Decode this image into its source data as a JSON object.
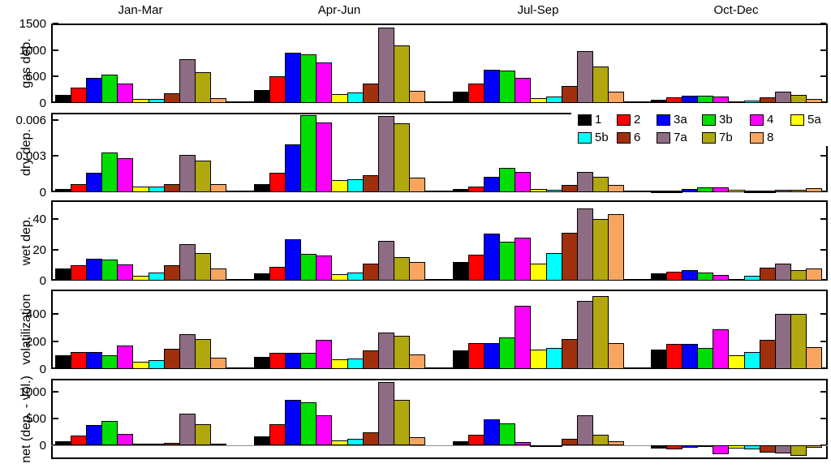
{
  "chart_data": {
    "type": "bar",
    "title": "",
    "groups": [
      "Jan-Mar",
      "Apr-Jun",
      "Jul-Sep",
      "Oct-Dec"
    ],
    "series_labels": [
      "1",
      "2",
      "3a",
      "3b",
      "4",
      "5a",
      "5b",
      "6",
      "7a",
      "7b",
      "8"
    ],
    "series_colors": {
      "1": "#000000",
      "2": "#ff0000",
      "3a": "#0000ff",
      "3b": "#00dd00",
      "4": "#ff00ff",
      "5a": "#ffff00",
      "5b": "#00ffff",
      "6": "#a0300d",
      "7a": "#8e6c84",
      "7b": "#b1a70f",
      "8": "#f8a55f"
    },
    "legend": {
      "position": "top-right of dry dep. panel",
      "rows": [
        [
          "1",
          "2",
          "3a",
          "3b",
          "4",
          "5a"
        ],
        [
          "5b",
          "6",
          "7a",
          "7b",
          "8"
        ]
      ]
    },
    "panels": [
      {
        "ylabel": "gas dep.",
        "ylim": [
          0,
          1500
        ],
        "yticks": [
          0,
          500,
          1000,
          1500
        ],
        "ytick_labels": [
          "0",
          "500",
          "1000",
          "1500"
        ],
        "series": [
          {
            "group": "Jan-Mar",
            "values": [
              160,
              290,
              480,
              540,
              370,
              70,
              80,
              185,
              820,
              585,
              95
            ]
          },
          {
            "group": "Apr-Jun",
            "values": [
              250,
              500,
              950,
              915,
              760,
              165,
              200,
              360,
              1430,
              1090,
              230
            ]
          },
          {
            "group": "Jul-Sep",
            "values": [
              215,
              370,
              625,
              605,
              480,
              85,
              130,
              320,
              985,
              690,
              220
            ]
          },
          {
            "group": "Oct-Dec",
            "values": [
              60,
              105,
              140,
              140,
              115,
              35,
              50,
              100,
              220,
              160,
              70
            ]
          }
        ]
      },
      {
        "ylabel": "dry dep.",
        "ylim": [
          0,
          0.0066
        ],
        "yticks": [
          0,
          0.003,
          0.006
        ],
        "ytick_labels": [
          "0",
          "0.003",
          "0.006"
        ],
        "series": [
          {
            "group": "Jan-Mar",
            "values": [
              0.00025,
              0.0007,
              0.0016,
              0.0033,
              0.0028,
              0.0005,
              0.0005,
              0.0007,
              0.0031,
              0.0026,
              0.0007
            ]
          },
          {
            "group": "Apr-Jun",
            "values": [
              0.0007,
              0.0016,
              0.004,
              0.0064,
              0.0058,
              0.001,
              0.0011,
              0.0014,
              0.0063,
              0.0057,
              0.0012
            ]
          },
          {
            "group": "Jul-Sep",
            "values": [
              0.0003,
              0.0005,
              0.0013,
              0.002,
              0.0017,
              0.0003,
              0.0002,
              0.0006,
              0.0017,
              0.0013,
              0.0006
            ]
          },
          {
            "group": "Oct-Dec",
            "values": [
              7e-05,
              0.0001,
              0.00025,
              0.0004,
              0.0004,
              0.00018,
              0.0001,
              0.0001,
              0.00022,
              0.00022,
              0.00033
            ]
          }
        ]
      },
      {
        "ylabel": "wet dep.",
        "ylim": [
          0,
          52
        ],
        "yticks": [
          0,
          20,
          40
        ],
        "ytick_labels": [
          "0",
          "20",
          "40"
        ],
        "series": [
          {
            "group": "Jan-Mar",
            "values": [
              8,
              10,
              14,
              13.5,
              10.5,
              3,
              5.5,
              10,
              23.5,
              18,
              8
            ]
          },
          {
            "group": "Apr-Jun",
            "values": [
              4.5,
              9,
              27,
              17.5,
              16.5,
              4,
              5.5,
              11,
              26,
              15,
              12
            ]
          },
          {
            "group": "Jul-Sep",
            "values": [
              12,
              17,
              30.5,
              25,
              28,
              11,
              18,
              31,
              47,
              40,
              43
            ]
          },
          {
            "group": "Oct-Dec",
            "values": [
              4.5,
              6,
              7,
              5.5,
              3.5,
              1,
              3,
              8.5,
              11,
              7,
              8
            ]
          }
        ]
      },
      {
        "ylabel": "volatilization",
        "ylim": [
          0,
          575
        ],
        "yticks": [
          0,
          200,
          400
        ],
        "ytick_labels": [
          "0",
          "200",
          "400"
        ],
        "series": [
          {
            "group": "Jan-Mar",
            "values": [
              100,
              125,
              125,
              100,
              170,
              50,
              65,
              145,
              255,
              215,
              85
            ]
          },
          {
            "group": "Apr-Jun",
            "values": [
              90,
              120,
              120,
              120,
              210,
              70,
              75,
              135,
              265,
              240,
              105
            ]
          },
          {
            "group": "Jul-Sep",
            "values": [
              135,
              190,
              190,
              230,
              460,
              140,
              155,
              215,
              490,
              530,
              190
            ]
          },
          {
            "group": "Oct-Dec",
            "values": [
              140,
              180,
              180,
              150,
              290,
              100,
              125,
              210,
              400,
              400,
              160
            ]
          }
        ]
      },
      {
        "ylabel": "net (dep. - vol.)",
        "ylim": [
          -260,
          1250
        ],
        "yticks": [
          0,
          500,
          1000
        ],
        "ytick_labels": [
          "0",
          "500",
          "1000"
        ],
        "zero_line": true,
        "series": [
          {
            "group": "Jan-Mar",
            "values": [
              70,
              175,
              375,
              460,
              220,
              20,
              15,
              50,
              590,
              390,
              10
            ]
          },
          {
            "group": "Apr-Jun",
            "values": [
              160,
              400,
              850,
              810,
              560,
              85,
              120,
              240,
              1190,
              860,
              145
            ]
          },
          {
            "group": "Jul-Sep",
            "values": [
              70,
              190,
              480,
              410,
              55,
              -35,
              -15,
              120,
              560,
              190,
              70
            ]
          },
          {
            "group": "Oct-Dec",
            "values": [
              -60,
              -80,
              -50,
              -25,
              -175,
              -55,
              -80,
              -135,
              -150,
              -205,
              -45
            ]
          }
        ]
      }
    ]
  }
}
